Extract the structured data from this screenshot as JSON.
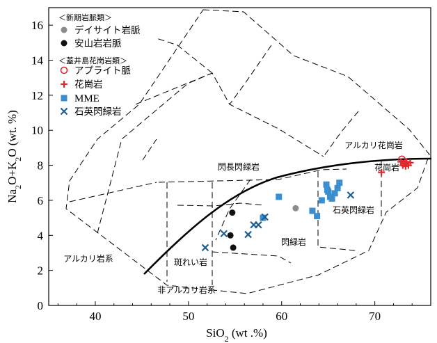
{
  "chart_data": {
    "type": "scatter",
    "xlabel": "SiO2 (wt.%)",
    "ylabel": "Na2O+K2O (wt.%)",
    "xlim": [
      35,
      76
    ],
    "ylim": [
      0,
      17
    ],
    "x_ticks": [
      "40",
      "50",
      "60",
      "70"
    ],
    "y_ticks": [
      "0",
      "2",
      "4",
      "6",
      "8",
      "10",
      "12",
      "14",
      "16"
    ],
    "legend": {
      "group1_title": "＜新期岩脈類＞",
      "group2_title": "＜蓋井島花崗岩類＞",
      "placement": "top-left"
    },
    "series": [
      {
        "name": "デイサイト岩脈",
        "marker": "circle",
        "color": "#8c8c8c",
        "points": [
          [
            61.5,
            5.55
          ]
        ]
      },
      {
        "name": "安山岩岩脈",
        "marker": "circle",
        "color": "#111111",
        "points": [
          [
            54.7,
            5.3
          ],
          [
            54.5,
            4.0
          ],
          [
            54.8,
            3.3
          ]
        ]
      },
      {
        "name": "アプライト脈",
        "marker": "open-circle",
        "color": "#e3262a",
        "points": [
          [
            72.9,
            8.35
          ],
          [
            73.1,
            8.1
          ]
        ]
      },
      {
        "name": "花崗岩",
        "marker": "plus",
        "color": "#e3262a",
        "points": [
          [
            70.7,
            7.6
          ],
          [
            72.8,
            8.2
          ],
          [
            73.0,
            8.0
          ],
          [
            73.2,
            8.1
          ],
          [
            73.4,
            8.2
          ],
          [
            73.6,
            8.0
          ],
          [
            73.8,
            8.15
          ],
          [
            73.3,
            7.95
          ]
        ]
      },
      {
        "name": "MME",
        "marker": "square",
        "color": "#3b8fd0",
        "points": [
          [
            58.0,
            5.0
          ],
          [
            59.7,
            6.2
          ],
          [
            63.3,
            5.4
          ],
          [
            63.8,
            5.1
          ],
          [
            64.3,
            6.0
          ],
          [
            64.8,
            6.9
          ],
          [
            65.2,
            6.2
          ],
          [
            65.7,
            6.4
          ],
          [
            66.0,
            6.7
          ],
          [
            66.2,
            7.0
          ],
          [
            65.0,
            6.5
          ],
          [
            65.4,
            6.1
          ],
          [
            64.9,
            6.6
          ]
        ]
      },
      {
        "name": "石英閃緑岩",
        "marker": "x",
        "color": "#1f5f8f",
        "points": [
          [
            51.8,
            3.3
          ],
          [
            53.8,
            4.1
          ],
          [
            56.4,
            4.05
          ],
          [
            57.0,
            4.6
          ],
          [
            57.5,
            4.6
          ],
          [
            58.2,
            5.05
          ],
          [
            67.4,
            6.3
          ]
        ]
      }
    ],
    "field_labels": [
      "アルカリ花崗岩",
      "花崗岩",
      "石英閃緑岩",
      "閃緑岩",
      "閃長閃緑岩",
      "斑れい岩",
      "アルカリ岩系",
      "非アルカリ岩系"
    ],
    "grid": false
  }
}
